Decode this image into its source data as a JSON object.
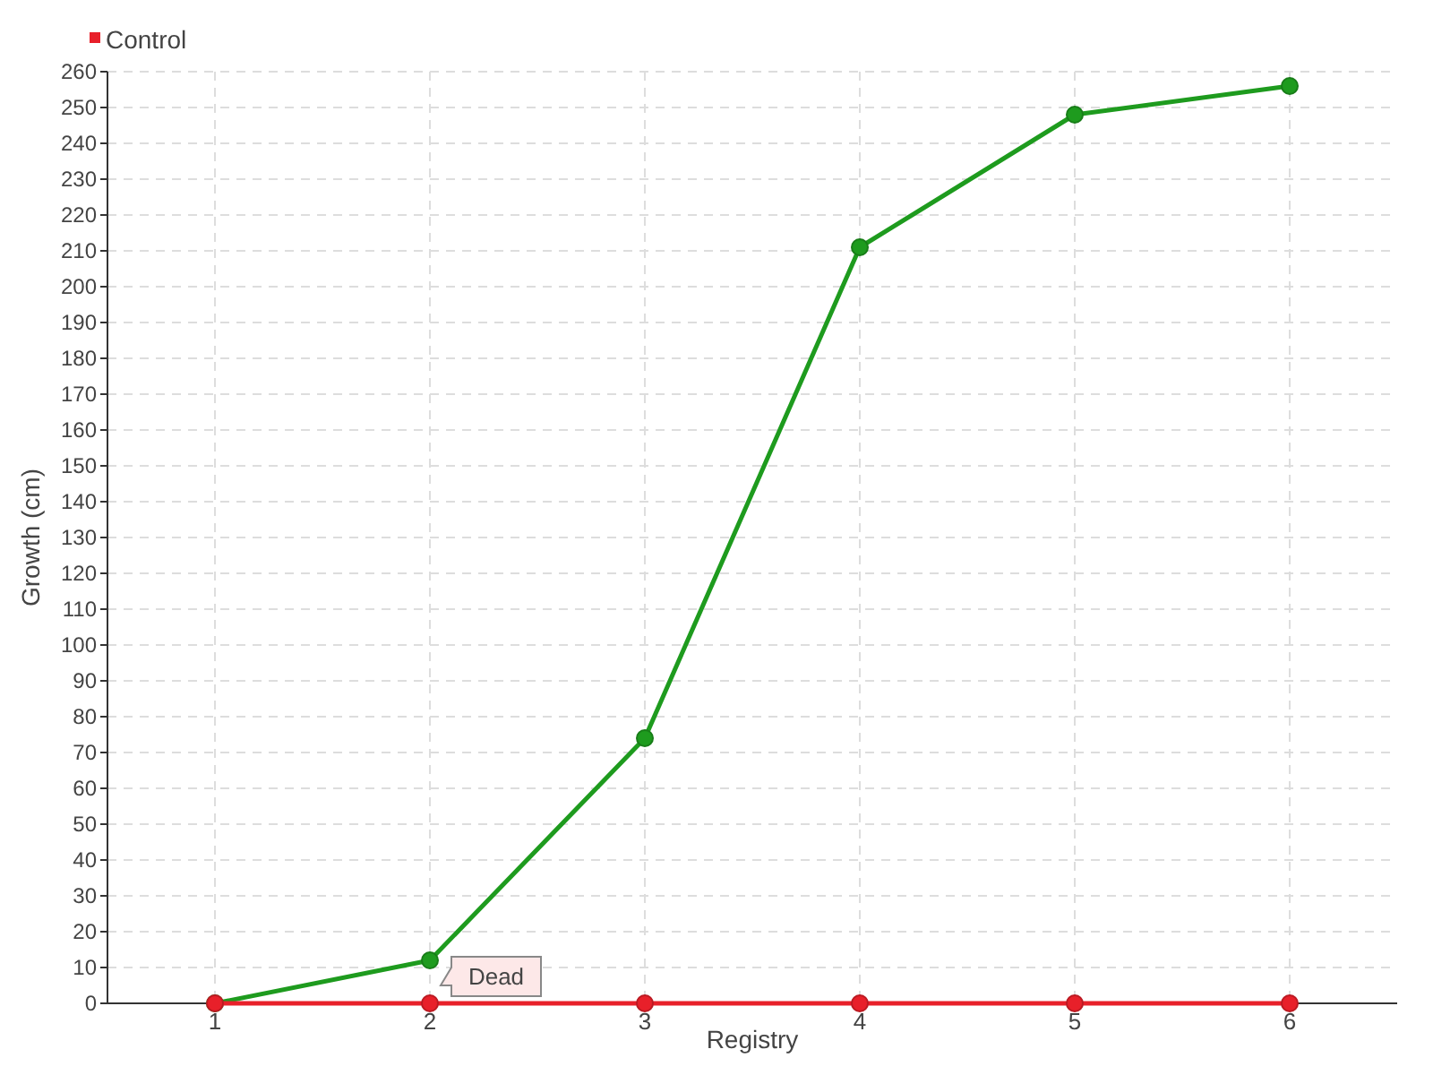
{
  "chart_data": {
    "type": "line",
    "xlabel": "Registry",
    "ylabel": "Growth (cm)",
    "categories": [
      "1",
      "2",
      "3",
      "4",
      "5",
      "6"
    ],
    "series": [
      {
        "color": "#1e9b1e",
        "values": [
          0,
          12,
          74,
          211,
          248,
          256
        ]
      },
      {
        "name": "Control",
        "color": "#e8202a",
        "values": [
          0,
          0,
          0,
          0,
          0,
          0
        ]
      }
    ],
    "ylim": [
      0,
      260
    ],
    "yticks": [
      0,
      10,
      20,
      30,
      40,
      50,
      60,
      70,
      80,
      90,
      100,
      110,
      120,
      130,
      140,
      150,
      160,
      170,
      180,
      190,
      200,
      210,
      220,
      230,
      240,
      250,
      260
    ],
    "grid": true,
    "legend": "top left",
    "marker": "circle",
    "line_style": "solid",
    "annotations": [
      {
        "text": "Dead",
        "x": "2",
        "y": 0
      }
    ]
  }
}
